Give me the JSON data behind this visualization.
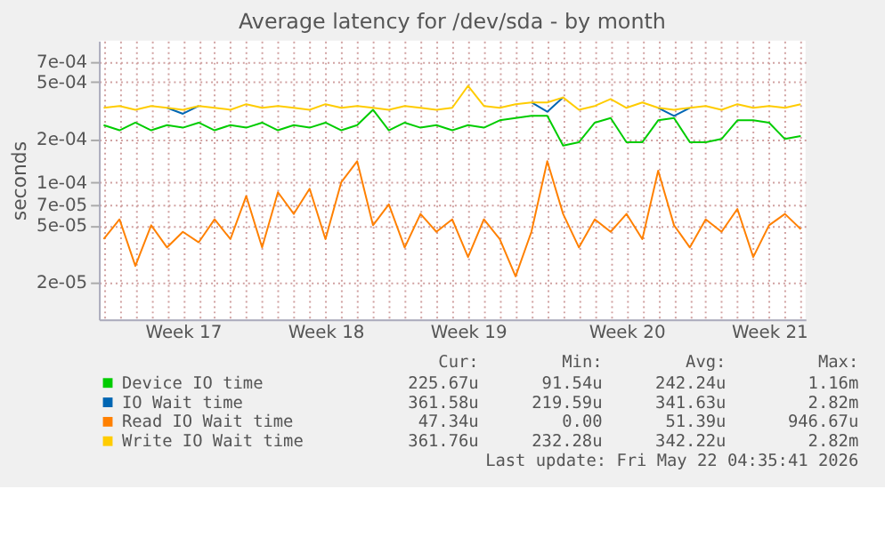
{
  "chart_data": {
    "type": "line",
    "title": "Average latency for /dev/sda - by month",
    "ylabel": "seconds",
    "log": "y",
    "categories": [
      null,
      null,
      null,
      null,
      null,
      "Week 17",
      null,
      null,
      null,
      null,
      null,
      null,
      null,
      null,
      "Week 18",
      null,
      null,
      null,
      null,
      null,
      null,
      null,
      null,
      "Week 19",
      null,
      null,
      null,
      null,
      null,
      null,
      null,
      null,
      null,
      "Week 20",
      null,
      null,
      null,
      null,
      null,
      null,
      null,
      null,
      "Week 21",
      null,
      null
    ],
    "ylim": [
      1.1e-05,
      0.00097
    ],
    "yticks": [
      {
        "value": 2e-05,
        "label": "2e-05"
      },
      {
        "value": 5e-05,
        "label": "5e-05"
      },
      {
        "value": 7e-05,
        "label": "7e-05"
      },
      {
        "value": 0.0001,
        "label": "1e-04"
      },
      {
        "value": 0.0002,
        "label": "2e-04"
      },
      {
        "value": 0.0005,
        "label": "5e-04"
      },
      {
        "value": 0.0007,
        "label": "7e-04"
      }
    ],
    "grid": true,
    "legend": "bottom",
    "marker": "none",
    "line_style": "solid",
    "series": [
      {
        "name": "Device IO time",
        "color": "#00cc00",
        "values": [
          0.00025,
          0.00023,
          0.00026,
          0.00023,
          0.00025,
          0.00024,
          0.00026,
          0.00023,
          0.00025,
          0.00024,
          0.00026,
          0.00023,
          0.00025,
          0.00024,
          0.00026,
          0.00023,
          0.00025,
          0.00032,
          0.00023,
          0.00026,
          0.00024,
          0.00025,
          0.00023,
          0.00025,
          0.00024,
          0.00027,
          0.00028,
          0.00029,
          0.00029,
          0.00018,
          0.00019,
          0.00026,
          0.00028,
          0.00019,
          0.00019,
          0.00027,
          0.00028,
          0.00019,
          0.00019,
          0.0002,
          0.00027,
          0.00027,
          0.00026,
          0.0002,
          0.00021
        ]
      },
      {
        "name": "IO Wait time",
        "color": "#0066b3",
        "values": [
          null,
          null,
          null,
          null,
          0.00033,
          0.0003,
          0.00034,
          null,
          null,
          null,
          null,
          null,
          null,
          null,
          null,
          null,
          null,
          null,
          null,
          null,
          null,
          null,
          null,
          null,
          null,
          null,
          null,
          0.00036,
          0.00031,
          0.00039,
          null,
          null,
          null,
          null,
          null,
          0.00033,
          0.00029,
          0.00033,
          null,
          null,
          null,
          null,
          null,
          null,
          null
        ]
      },
      {
        "name": "Read IO Wait time",
        "color": "#ff8000",
        "values": [
          4e-05,
          5.5e-05,
          2.6e-05,
          5e-05,
          3.5e-05,
          4.5e-05,
          3.8e-05,
          5.5e-05,
          4e-05,
          8e-05,
          3.5e-05,
          8.5e-05,
          6e-05,
          9e-05,
          4e-05,
          0.0001,
          0.00014,
          5e-05,
          7e-05,
          3.5e-05,
          6e-05,
          4.5e-05,
          5.5e-05,
          3e-05,
          5.5e-05,
          4e-05,
          2.2e-05,
          4.5e-05,
          0.00014,
          6e-05,
          3.5e-05,
          5.5e-05,
          4.5e-05,
          6e-05,
          4e-05,
          0.00012,
          5e-05,
          3.5e-05,
          5.5e-05,
          4.5e-05,
          6.5e-05,
          3e-05,
          5e-05,
          6e-05,
          4.7e-05
        ]
      },
      {
        "name": "Write IO Wait time",
        "color": "#ffcc00",
        "values": [
          0.00033,
          0.00034,
          0.00032,
          0.00034,
          0.00033,
          0.00032,
          0.00034,
          0.00033,
          0.00032,
          0.00035,
          0.00033,
          0.00034,
          0.00033,
          0.00032,
          0.00035,
          0.00033,
          0.00034,
          0.00033,
          0.00032,
          0.00034,
          0.00033,
          0.00032,
          0.00033,
          0.00047,
          0.00034,
          0.00033,
          0.00035,
          0.00036,
          0.00036,
          0.00039,
          0.00032,
          0.00034,
          0.00038,
          0.00033,
          0.00036,
          0.00033,
          0.00032,
          0.00033,
          0.00034,
          0.00032,
          0.00035,
          0.00033,
          0.00034,
          0.00033,
          0.00035
        ]
      }
    ],
    "annotations": [
      "Cur:",
      "Min:",
      "Avg:",
      "Max:",
      "225.67u",
      "91.54u",
      "242.24u",
      "1.16m",
      "361.58u",
      "219.59u",
      "341.63u",
      "2.82m",
      "47.34u",
      "0.00",
      "51.39u",
      "946.67u",
      "361.76u",
      "232.28u",
      "342.22u",
      "2.82m",
      "Last update: Fri May 22 04:35:41 2026"
    ]
  }
}
